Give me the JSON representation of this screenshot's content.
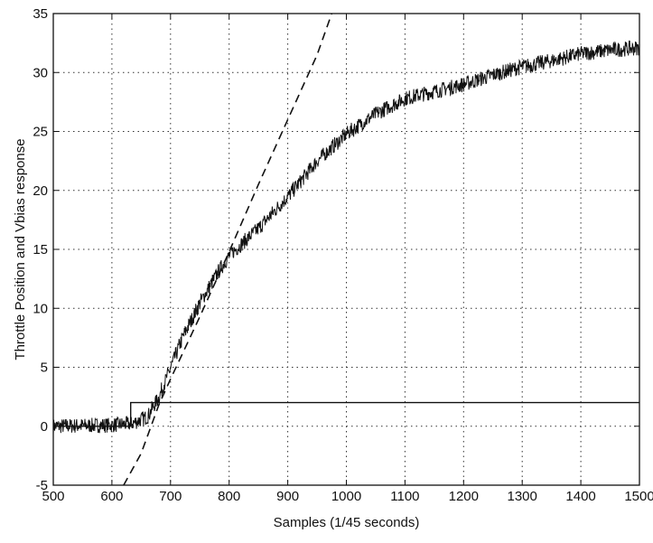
{
  "chart_data": {
    "type": "line",
    "xlabel": "Samples (1/45 seconds)",
    "ylabel": "Throttle Position and Vbias response",
    "xlim": [
      500,
      1500
    ],
    "ylim": [
      -5,
      35
    ],
    "x_ticks": [
      500,
      600,
      700,
      800,
      900,
      1000,
      1100,
      1200,
      1300,
      1400,
      1500
    ],
    "y_ticks": [
      -5,
      0,
      5,
      10,
      15,
      20,
      25,
      30,
      35
    ],
    "grid": true,
    "series": [
      {
        "style": "solid-step",
        "x": [
          500,
          632,
          632,
          1500
        ],
        "y": [
          0,
          0,
          2,
          2
        ]
      },
      {
        "style": "noisy-measured",
        "x": [
          500,
          600,
          632,
          660,
          680,
          700,
          720,
          750,
          780,
          800,
          850,
          900,
          950,
          1000,
          1050,
          1100,
          1150,
          1200,
          1250,
          1300,
          1350,
          1400,
          1450,
          1500
        ],
        "y": [
          0,
          0.1,
          0.2,
          0.8,
          2.5,
          5.0,
          7.5,
          10.5,
          13.0,
          14.5,
          16.8,
          19.5,
          22.5,
          24.8,
          26.5,
          27.8,
          28.4,
          29.0,
          29.8,
          30.5,
          31.0,
          31.6,
          31.9,
          32.1
        ]
      },
      {
        "style": "dashed",
        "x": [
          620,
          650,
          680,
          700,
          750,
          800,
          850,
          900,
          950,
          975
        ],
        "y": [
          -5,
          -2.3,
          1.8,
          4.0,
          9.3,
          14.8,
          20.5,
          26.0,
          31.5,
          35.0
        ]
      }
    ]
  }
}
